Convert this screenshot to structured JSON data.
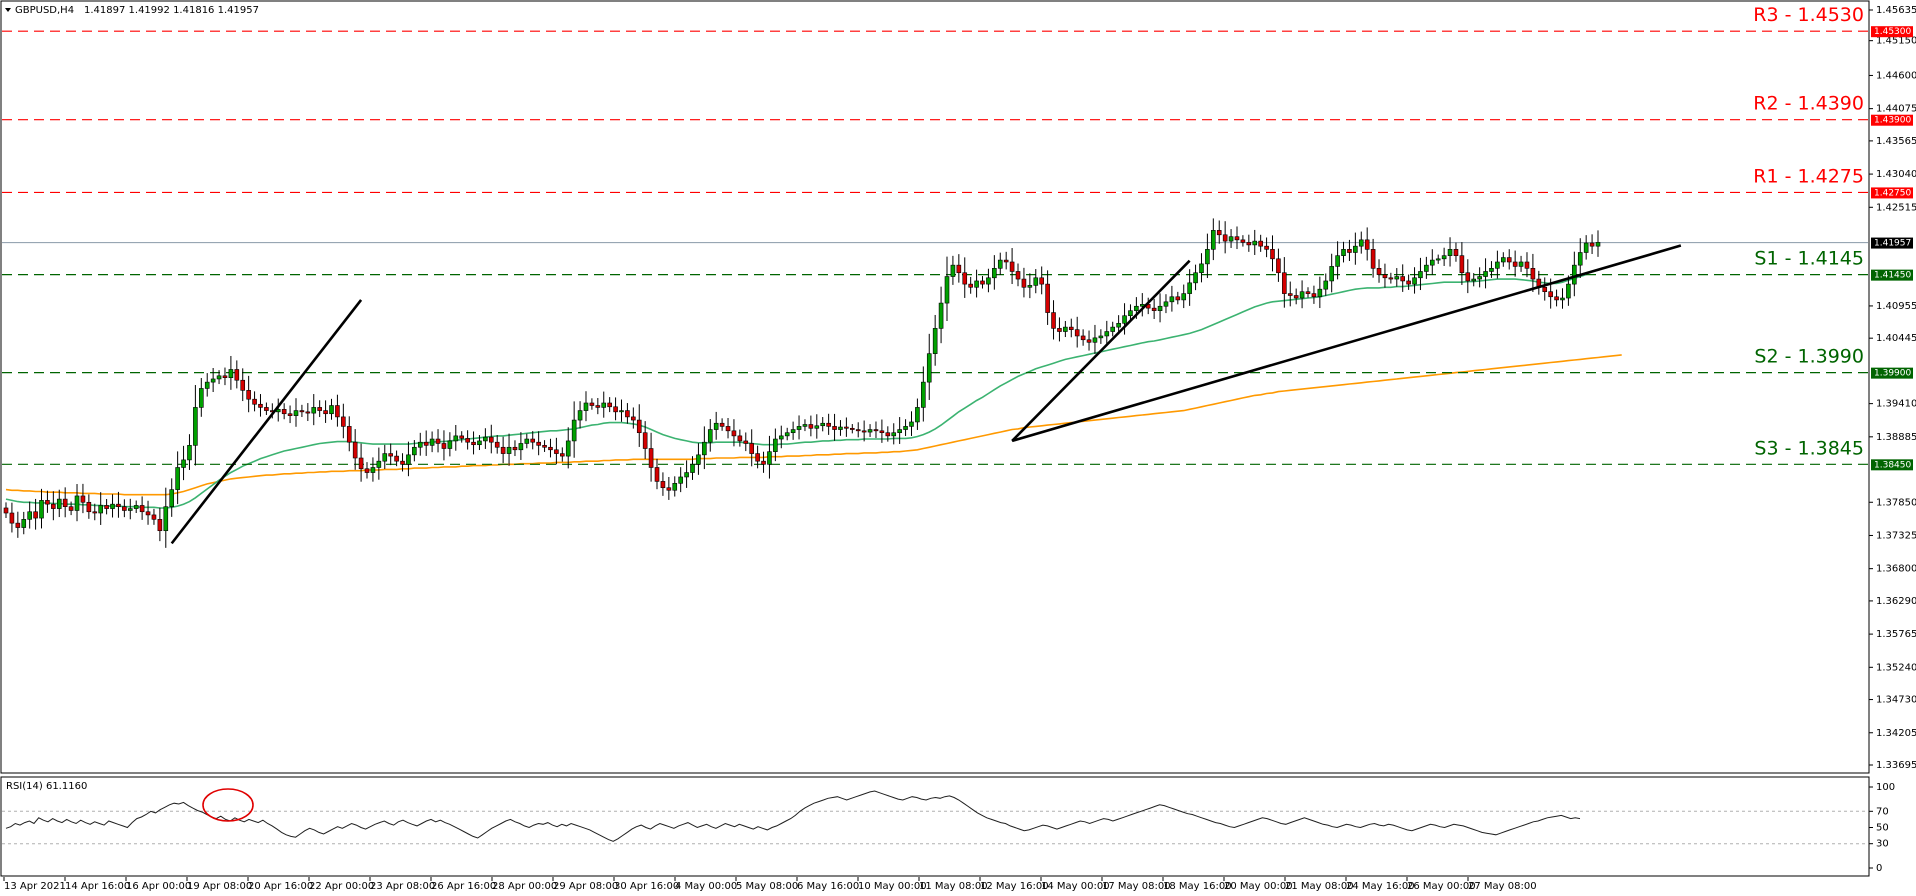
{
  "header": {
    "symbol": "GBPUSD,H4",
    "ohlc": "1.41897 1.41992 1.41816 1.41957"
  },
  "rsi": {
    "label": "RSI(14) 61.1160",
    "ticks": [
      {
        "value": 100,
        "label": "100"
      },
      {
        "value": 70,
        "label": "70"
      },
      {
        "value": 50,
        "label": "50"
      },
      {
        "value": 30,
        "label": "30"
      },
      {
        "value": 0,
        "label": "0"
      }
    ],
    "levels": [
      70,
      30
    ],
    "values": [
      49,
      51,
      55,
      53,
      56,
      58,
      55,
      62,
      59,
      57,
      61,
      58,
      56,
      60,
      57,
      55,
      59,
      56,
      54,
      57,
      55,
      53,
      58,
      56,
      54,
      52,
      50,
      56,
      61,
      63,
      66,
      70,
      68,
      72,
      75,
      78,
      80,
      79,
      81,
      77,
      74,
      71,
      69,
      66,
      63,
      61,
      64,
      60,
      58,
      62,
      59,
      57,
      60,
      58,
      56,
      59,
      55,
      52,
      48,
      44,
      41,
      39,
      38,
      42,
      46,
      49,
      47,
      44,
      42,
      45,
      48,
      51,
      49,
      52,
      55,
      53,
      50,
      48,
      51,
      54,
      56,
      58,
      55,
      53,
      57,
      59,
      56,
      54,
      52,
      55,
      58,
      60,
      57,
      59,
      56,
      54,
      51,
      48,
      45,
      42,
      39,
      37,
      41,
      45,
      49,
      52,
      55,
      58,
      60,
      57,
      55,
      52,
      50,
      53,
      55,
      54,
      56,
      53,
      51,
      54,
      52,
      55,
      53,
      51,
      49,
      47,
      44,
      41,
      38,
      35,
      33,
      36,
      40,
      44,
      48,
      51,
      53,
      50,
      48,
      52,
      55,
      53,
      51,
      49,
      52,
      54,
      56,
      53,
      50,
      52,
      54,
      51,
      49,
      52,
      55,
      53,
      51,
      54,
      52,
      50,
      48,
      51,
      49,
      47,
      50,
      52,
      55,
      58,
      61,
      65,
      70,
      74,
      77,
      80,
      82,
      84,
      86,
      87,
      88,
      86,
      84,
      86,
      88,
      90,
      92,
      94,
      95,
      93,
      91,
      89,
      87,
      85,
      84,
      86,
      88,
      87,
      85,
      84,
      86,
      87,
      86,
      88,
      89,
      87,
      84,
      80,
      76,
      72,
      68,
      65,
      62,
      60,
      58,
      56,
      55,
      52,
      50,
      48,
      46,
      47,
      49,
      51,
      53,
      52,
      50,
      48,
      50,
      52,
      54,
      56,
      58,
      57,
      55,
      57,
      59,
      61,
      60,
      58,
      60,
      62,
      64,
      66,
      68,
      70,
      72,
      74,
      76,
      78,
      77,
      75,
      73,
      71,
      69,
      67,
      66,
      64,
      62,
      60,
      58,
      56,
      55,
      53,
      51,
      50,
      52,
      54,
      56,
      58,
      60,
      62,
      61,
      59,
      57,
      55,
      54,
      56,
      58,
      60,
      62,
      60,
      58,
      56,
      54,
      53,
      51,
      50,
      52,
      54,
      53,
      51,
      50,
      52,
      54,
      55,
      53,
      52,
      54,
      53,
      51,
      49,
      47,
      46,
      48,
      50,
      52,
      54,
      53,
      51,
      50,
      52,
      54,
      53,
      52,
      50,
      48,
      46,
      44,
      43,
      42,
      41,
      43,
      45,
      47,
      49,
      51,
      53,
      55,
      57,
      58,
      60,
      62,
      63,
      64,
      65,
      63,
      61,
      62,
      61
    ]
  },
  "chart_data": {
    "type": "candlestick",
    "symbol": "GBPUSD",
    "timeframe": "H4",
    "x_ticks": [
      "13 Apr 2021",
      "14 Apr 16:00",
      "16 Apr 00:00",
      "19 Apr 08:00",
      "20 Apr 16:00",
      "22 Apr 00:00",
      "23 Apr 08:00",
      "26 Apr 16:00",
      "28 Apr 00:00",
      "29 Apr 08:00",
      "30 Apr 16:00",
      "4 May 00:00",
      "5 May 08:00",
      "6 May 16:00",
      "10 May 00:00",
      "11 May 08:00",
      "12 May 16:00",
      "14 May 00:00",
      "17 May 08:00",
      "18 May 16:00",
      "20 May 00:00",
      "21 May 08:00",
      "24 May 16:00",
      "26 May 00:00",
      "27 May 08:00"
    ],
    "y_ticks": [
      {
        "value": 1.45635,
        "label": "1.45635"
      },
      {
        "value": 1.4515,
        "label": "1.45150"
      },
      {
        "value": 1.446,
        "label": "1.44600"
      },
      {
        "value": 1.44075,
        "label": "1.44075"
      },
      {
        "value": 1.43565,
        "label": "1.43565"
      },
      {
        "value": 1.4304,
        "label": "1.43040"
      },
      {
        "value": 1.42515,
        "label": "1.42515"
      },
      {
        "value": 1.40955,
        "label": "1.40955"
      },
      {
        "value": 1.40445,
        "label": "1.40445"
      },
      {
        "value": 1.3941,
        "label": "1.39410"
      },
      {
        "value": 1.38885,
        "label": "1.38885"
      },
      {
        "value": 1.3785,
        "label": "1.37850"
      },
      {
        "value": 1.37325,
        "label": "1.37325"
      },
      {
        "value": 1.368,
        "label": "1.36800"
      },
      {
        "value": 1.3629,
        "label": "1.36290"
      },
      {
        "value": 1.35765,
        "label": "1.35765"
      },
      {
        "value": 1.3524,
        "label": "1.35240"
      },
      {
        "value": 1.3473,
        "label": "1.34730"
      },
      {
        "value": 1.34205,
        "label": "1.34205"
      },
      {
        "value": 1.33695,
        "label": "1.33695"
      }
    ],
    "ylim": [
      1.33695,
      1.45635
    ],
    "current_price": {
      "value": 1.41957,
      "label": "1.41957"
    },
    "levels": [
      {
        "name": "R3 - 1.4530",
        "value": 1.453,
        "tag": "1.45300",
        "color": "#ff0000"
      },
      {
        "name": "R2 - 1.4390",
        "value": 1.439,
        "tag": "1.43900",
        "color": "#ff0000"
      },
      {
        "name": "R1 - 1.4275",
        "value": 1.4275,
        "tag": "1.42750",
        "color": "#ff0000"
      },
      {
        "name": "S1 - 1.4145",
        "value": 1.4145,
        "tag": "1.41450",
        "color": "#006400"
      },
      {
        "name": "S2 - 1.3990",
        "value": 1.399,
        "tag": "1.39900",
        "color": "#006400"
      },
      {
        "name": "S3 - 1.3845",
        "value": 1.3845,
        "tag": "1.38450",
        "color": "#006400"
      }
    ],
    "trendlines": [
      {
        "from": [
          28,
          1.372
        ],
        "to": [
          60,
          1.4105
        ]
      },
      {
        "from": [
          170,
          1.3882
        ],
        "to": [
          200,
          1.4167
        ]
      },
      {
        "from": [
          170,
          1.3882
        ],
        "to": [
          283,
          1.4191
        ]
      }
    ],
    "close": [
      1.3768,
      1.3752,
      1.3745,
      1.3758,
      1.377,
      1.376,
      1.3788,
      1.3782,
      1.3775,
      1.379,
      1.3778,
      1.3772,
      1.3795,
      1.3785,
      1.377,
      1.3768,
      1.378,
      1.3775,
      1.3782,
      1.3778,
      1.3772,
      1.3775,
      1.378,
      1.377,
      1.3765,
      1.3758,
      1.374,
      1.3778,
      1.3805,
      1.384,
      1.3852,
      1.3875,
      1.3935,
      1.3965,
      1.3975,
      1.398,
      1.3985,
      1.3982,
      1.3995,
      1.3978,
      1.3962,
      1.3948,
      1.394,
      1.3935,
      1.393,
      1.3928,
      1.3932,
      1.3925,
      1.3922,
      1.393,
      1.3928,
      1.3926,
      1.3935,
      1.393,
      1.3925,
      1.3938,
      1.392,
      1.3905,
      1.388,
      1.3855,
      1.3838,
      1.3832,
      1.384,
      1.385,
      1.3862,
      1.3858,
      1.385,
      1.3845,
      1.386,
      1.3872,
      1.388,
      1.3875,
      1.3885,
      1.3878,
      1.387,
      1.3882,
      1.389,
      1.3886,
      1.388,
      1.3876,
      1.3882,
      1.3888,
      1.388,
      1.3872,
      1.3862,
      1.3872,
      1.3868,
      1.3878,
      1.3885,
      1.388,
      1.3875,
      1.3872,
      1.3868,
      1.3862,
      1.3858,
      1.3882,
      1.3915,
      1.393,
      1.3942,
      1.3938,
      1.3935,
      1.3942,
      1.3936,
      1.3928,
      1.393,
      1.392,
      1.3915,
      1.3895,
      1.387,
      1.384,
      1.3818,
      1.3808,
      1.3804,
      1.3815,
      1.3825,
      1.3832,
      1.3845,
      1.386,
      1.388,
      1.39,
      1.391,
      1.3905,
      1.3898,
      1.389,
      1.3882,
      1.3878,
      1.3862,
      1.385,
      1.3845,
      1.3865,
      1.3885,
      1.389,
      1.3895,
      1.39,
      1.3905,
      1.3908,
      1.3902,
      1.3906,
      1.391,
      1.3905,
      1.39,
      1.3904,
      1.3902,
      1.39,
      1.3898,
      1.3896,
      1.39,
      1.3898,
      1.3895,
      1.389,
      1.3895,
      1.39,
      1.3905,
      1.3912,
      1.3935,
      1.3975,
      1.402,
      1.406,
      1.41,
      1.4142,
      1.416,
      1.4148,
      1.413,
      1.4125,
      1.4135,
      1.413,
      1.414,
      1.4155,
      1.4168,
      1.4165,
      1.415,
      1.4138,
      1.4125,
      1.4128,
      1.414,
      1.413,
      1.4085,
      1.406,
      1.4055,
      1.4062,
      1.4058,
      1.4048,
      1.4042,
      1.4038,
      1.4045,
      1.4048,
      1.4055,
      1.4062,
      1.4068,
      1.408,
      1.4088,
      1.4095,
      1.4098,
      1.4092,
      1.4088,
      1.4095,
      1.4102,
      1.411,
      1.4105,
      1.4115,
      1.4132,
      1.4148,
      1.4162,
      1.4185,
      1.4215,
      1.4208,
      1.4198,
      1.4205,
      1.42,
      1.4196,
      1.4192,
      1.4198,
      1.419,
      1.4185,
      1.417,
      1.4148,
      1.4115,
      1.4112,
      1.4108,
      1.4118,
      1.4115,
      1.411,
      1.4122,
      1.4135,
      1.4158,
      1.4175,
      1.4185,
      1.418,
      1.419,
      1.42,
      1.4185,
      1.4155,
      1.4145,
      1.414,
      1.4138,
      1.4142,
      1.4135,
      1.413,
      1.414,
      1.415,
      1.416,
      1.4168,
      1.417,
      1.4175,
      1.4185,
      1.4175,
      1.4148,
      1.4135,
      1.4138,
      1.4142,
      1.415,
      1.4155,
      1.4165,
      1.4172,
      1.4165,
      1.4158,
      1.4165,
      1.4155,
      1.4138,
      1.4125,
      1.4118,
      1.411,
      1.4105,
      1.4108,
      1.413,
      1.416,
      1.418,
      1.4195,
      1.419,
      1.4196
    ],
    "ma50": [
      1.379,
      1.3788,
      1.3786,
      1.3785,
      1.3785,
      1.3784,
      1.3784,
      1.3784,
      1.3783,
      1.3783,
      1.3782,
      1.3782,
      1.3782,
      1.3781,
      1.3781,
      1.378,
      1.378,
      1.3779,
      1.3779,
      1.3779,
      1.3778,
      1.3778,
      1.3778,
      1.3777,
      1.3777,
      1.3777,
      1.3776,
      1.3776,
      1.3777,
      1.3779,
      1.3782,
      1.3786,
      1.3792,
      1.3799,
      1.3806,
      1.3813,
      1.382,
      1.3826,
      1.3832,
      1.3837,
      1.3842,
      1.3846,
      1.385,
      1.3854,
      1.3857,
      1.386,
      1.3863,
      1.3866,
      1.3868,
      1.387,
      1.3872,
      1.3874,
      1.3876,
      1.3878,
      1.3879,
      1.388,
      1.3881,
      1.3881,
      1.3881,
      1.388,
      1.3879,
      1.3878,
      1.3877,
      1.3877,
      1.3877,
      1.3877,
      1.3877,
      1.3877,
      1.3877,
      1.3878,
      1.3879,
      1.3879,
      1.388,
      1.3881,
      1.3881,
      1.3882,
      1.3883,
      1.3884,
      1.3885,
      1.3886,
      1.3887,
      1.3888,
      1.3889,
      1.389,
      1.389,
      1.3891,
      1.3892,
      1.3893,
      1.3894,
      1.3895,
      1.3896,
      1.3897,
      1.3898,
      1.3898,
      1.3899,
      1.39,
      1.3901,
      1.3903,
      1.3905,
      1.3907,
      1.3908,
      1.391,
      1.3911,
      1.3911,
      1.3911,
      1.391,
      1.3909,
      1.3907,
      1.3904,
      1.39,
      1.3896,
      1.3892,
      1.3889,
      1.3886,
      1.3884,
      1.3882,
      1.388,
      1.3879,
      1.3879,
      1.3879,
      1.388,
      1.388,
      1.388,
      1.388,
      1.388,
      1.3879,
      1.3878,
      1.3877,
      1.3876,
      1.3876,
      1.3876,
      1.3877,
      1.3877,
      1.3878,
      1.3879,
      1.388,
      1.388,
      1.3881,
      1.3882,
      1.3882,
      1.3883,
      1.3883,
      1.3884,
      1.3884,
      1.3884,
      1.3885,
      1.3885,
      1.3885,
      1.3885,
      1.3885,
      1.3886,
      1.3886,
      1.3886,
      1.3887,
      1.3889,
      1.3892,
      1.3896,
      1.3901,
      1.3907,
      1.3914,
      1.3921,
      1.3928,
      1.3934,
      1.394,
      1.3946,
      1.3951,
      1.3957,
      1.3963,
      1.3969,
      1.3974,
      1.3979,
      1.3984,
      1.3988,
      1.3992,
      1.3996,
      1.3999,
      1.4002,
      1.4005,
      1.4008,
      1.4011,
      1.4013,
      1.4015,
      1.4017,
      1.4019,
      1.4021,
      1.4023,
      1.4025,
      1.4027,
      1.4029,
      1.4031,
      1.4033,
      1.4035,
      1.4037,
      1.4039,
      1.404,
      1.4042,
      1.4044,
      1.4046,
      1.4048,
      1.405,
      1.4052,
      1.4055,
      1.4058,
      1.4062,
      1.4066,
      1.407,
      1.4074,
      1.4078,
      1.4082,
      1.4086,
      1.409,
      1.4094,
      1.4097,
      1.41,
      1.4102,
      1.4103,
      1.4104,
      1.4105,
      1.4106,
      1.4107,
      1.4108,
      1.4109,
      1.411,
      1.4112,
      1.4114,
      1.4116,
      1.4118,
      1.412,
      1.4122,
      1.4123,
      1.4124,
      1.4124,
      1.4124,
      1.4125,
      1.4125,
      1.4126,
      1.4126,
      1.4127,
      1.4128,
      1.4129,
      1.413,
      1.4131,
      1.4132,
      1.4133,
      1.4133,
      1.4133,
      1.4133,
      1.4134,
      1.4134,
      1.4135,
      1.4136,
      1.4137,
      1.4138,
      1.4138,
      1.4138,
      1.4138,
      1.4137,
      1.4136,
      1.4135,
      1.4133,
      1.4132,
      1.4131,
      1.4131,
      1.4133,
      1.4136,
      1.4139,
      1.4142,
      1.4145
    ],
    "ma200": [
      1.3805,
      1.3804,
      1.3804,
      1.3803,
      1.3803,
      1.3802,
      1.3802,
      1.3801,
      1.3801,
      1.3801,
      1.38,
      1.38,
      1.38,
      1.3799,
      1.3799,
      1.3799,
      1.3798,
      1.3798,
      1.3798,
      1.3798,
      1.3797,
      1.3797,
      1.3797,
      1.3797,
      1.3797,
      1.3797,
      1.3797,
      1.3797,
      1.3798,
      1.38,
      1.3802,
      1.3805,
      1.3808,
      1.3811,
      1.3814,
      1.3816,
      1.3818,
      1.382,
      1.3822,
      1.3823,
      1.3824,
      1.3825,
      1.3826,
      1.3827,
      1.3828,
      1.3828,
      1.3829,
      1.383,
      1.383,
      1.3831,
      1.3831,
      1.3832,
      1.3832,
      1.3833,
      1.3833,
      1.3834,
      1.3834,
      1.3834,
      1.3835,
      1.3835,
      1.3835,
      1.3836,
      1.3836,
      1.3836,
      1.3837,
      1.3837,
      1.3837,
      1.3838,
      1.3838,
      1.3839,
      1.3839,
      1.3839,
      1.384,
      1.384,
      1.3841,
      1.3841,
      1.3841,
      1.3842,
      1.3842,
      1.3843,
      1.3843,
      1.3843,
      1.3844,
      1.3844,
      1.3845,
      1.3845,
      1.3845,
      1.3846,
      1.3846,
      1.3846,
      1.3847,
      1.3847,
      1.3847,
      1.3848,
      1.3848,
      1.3848,
      1.3849,
      1.3849,
      1.385,
      1.385,
      1.385,
      1.3851,
      1.3851,
      1.3852,
      1.3852,
      1.3852,
      1.3853,
      1.3853,
      1.3853,
      1.3853,
      1.3853,
      1.3853,
      1.3853,
      1.3853,
      1.3853,
      1.3853,
      1.3853,
      1.3854,
      1.3854,
      1.3854,
      1.3855,
      1.3855,
      1.3855,
      1.3855,
      1.3856,
      1.3856,
      1.3856,
      1.3856,
      1.3856,
      1.3857,
      1.3857,
      1.3857,
      1.3858,
      1.3858,
      1.3858,
      1.3859,
      1.3859,
      1.386,
      1.386,
      1.386,
      1.3861,
      1.3861,
      1.3862,
      1.3862,
      1.3862,
      1.3863,
      1.3863,
      1.3863,
      1.3864,
      1.3864,
      1.3865,
      1.3865,
      1.3866,
      1.3867,
      1.3868,
      1.387,
      1.3872,
      1.3874,
      1.3876,
      1.3878,
      1.388,
      1.3882,
      1.3884,
      1.3886,
      1.3888,
      1.389,
      1.3892,
      1.3894,
      1.3896,
      1.3898,
      1.39,
      1.3901,
      1.3903,
      1.3904,
      1.3905,
      1.3906,
      1.3907,
      1.3908,
      1.3909,
      1.391,
      1.3911,
      1.3912,
      1.3913,
      1.3914,
      1.3915,
      1.3916,
      1.3917,
      1.3918,
      1.3919,
      1.392,
      1.3921,
      1.3922,
      1.3923,
      1.3924,
      1.3925,
      1.3926,
      1.3927,
      1.3928,
      1.3929,
      1.393,
      1.3932,
      1.3934,
      1.3936,
      1.3938,
      1.394,
      1.3942,
      1.3944,
      1.3946,
      1.3948,
      1.395,
      1.3952,
      1.3954,
      1.3955,
      1.3957,
      1.3958,
      1.396,
      1.3961,
      1.3962,
      1.3963,
      1.3964,
      1.3965,
      1.3966,
      1.3967,
      1.3968,
      1.3969,
      1.397,
      1.3971,
      1.3972,
      1.3973,
      1.3974,
      1.3975,
      1.3976,
      1.3977,
      1.3978,
      1.3979,
      1.398,
      1.3981,
      1.3982,
      1.3983,
      1.3984,
      1.3985,
      1.3986,
      1.3987,
      1.3988,
      1.3989,
      1.399,
      1.3991,
      1.3992,
      1.3993,
      1.3994,
      1.3995,
      1.3996,
      1.3997,
      1.3998,
      1.3999,
      1.4,
      1.4001,
      1.4002,
      1.4003,
      1.4004,
      1.4005,
      1.4006,
      1.4007,
      1.4008,
      1.4009,
      1.401,
      1.4011,
      1.4012,
      1.4013,
      1.4014,
      1.4015,
      1.4016,
      1.4017,
      1.4018
    ]
  }
}
